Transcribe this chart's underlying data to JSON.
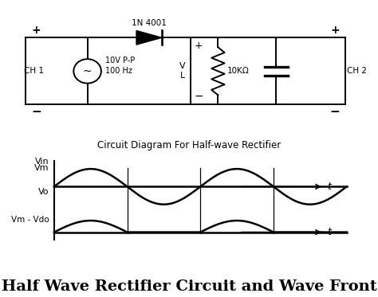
{
  "title": "Half Wave Rectifier Circuit and Wave Front",
  "circuit_caption": "Circuit Diagram For Half-wave Rectifier",
  "bg_color": "#ffffff",
  "diode_label": "1N 4001",
  "source_label": "10V P-P\n100 Hz",
  "resistor_label": "10KΩ",
  "ch1_label": "CH 1",
  "ch2_label": "CH 2",
  "vin_label": "Vin",
  "vm_label": "Vm",
  "vo_label": "Vo",
  "vm_vdo_label": "Vm - Vdo",
  "t_label": "t",
  "title_fontsize": 14,
  "caption_fontsize": 8.5
}
